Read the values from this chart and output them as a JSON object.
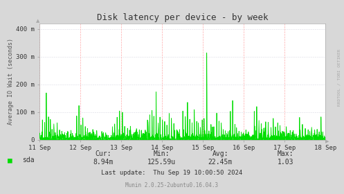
{
  "title": "Disk latency per device - by week",
  "ylabel": "Average IO Wait (seconds)",
  "yticks": [
    0,
    100,
    200,
    300,
    400
  ],
  "ytick_labels": [
    "0",
    "100 m",
    "200 m",
    "300 m",
    "400 m"
  ],
  "ylim": [
    0,
    420
  ],
  "xtick_labels": [
    "11 Sep",
    "12 Sep",
    "13 Sep",
    "14 Sep",
    "15 Sep",
    "16 Sep",
    "17 Sep",
    "18 Sep"
  ],
  "bg_color": "#d8d8d8",
  "plot_bg_color": "#ffffff",
  "grid_color_h": "#bbbbcc",
  "grid_color_v": "#ffaaaa",
  "line_color": "#00dd00",
  "watermark": "RRDTOOL / TOBI OETIKER",
  "munin_text": "Munin 2.0.25-2ubuntu0.16.04.3",
  "legend_label": "sda",
  "cur": "8.94m",
  "min": "125.59u",
  "avg": "22.45m",
  "max": "1.03",
  "last_update": "Thu Sep 19 10:00:50 2024"
}
